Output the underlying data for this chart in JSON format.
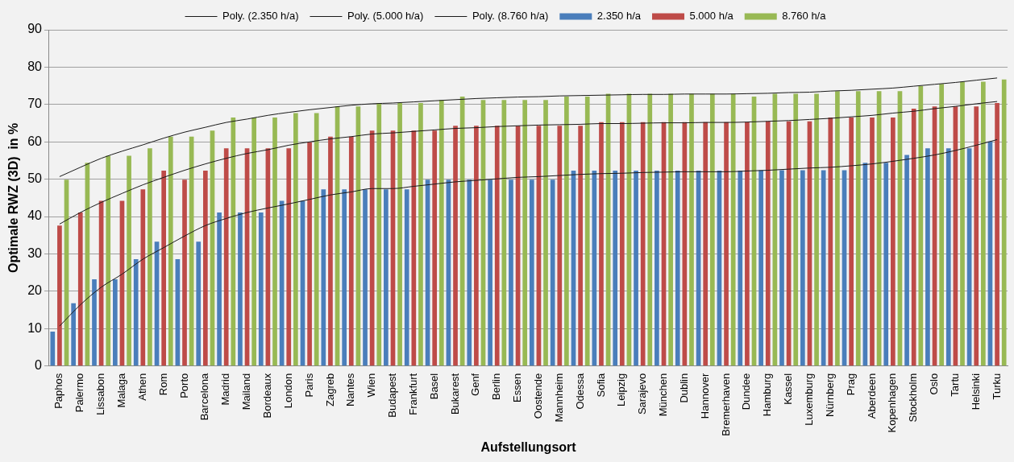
{
  "chart_data": {
    "type": "bar",
    "xlabel": "Aufstellungsort",
    "ylabel": "Optimale RWZ (3D)  in %",
    "categories": [
      "Paphos",
      "Palermo",
      "Lissabon",
      "Malaga",
      "Athen",
      "Rom",
      "Porto",
      "Barcelona",
      "Madrid",
      "Mailand",
      "Bordeaux",
      "London",
      "Paris",
      "Zagreb",
      "Nantes",
      "Wien",
      "Budapest",
      "Frankfurt",
      "Basel",
      "Bukarest",
      "Genf",
      "Berlin",
      "Essen",
      "Oostende",
      "Mannheim",
      "Odessa",
      "Sofia",
      "Leipzig",
      "Sarajevo",
      "München",
      "Dublin",
      "Hannover",
      "Bremerhaven",
      "Dundee",
      "Hamburg",
      "Kassel",
      "Luxemburg",
      "Nürnberg",
      "Prag",
      "Aberdeen",
      "Kopenhagen",
      "Stockholm",
      "Oslo",
      "Tartu",
      "Helsinki",
      "Turku"
    ],
    "series": [
      {
        "name": "2.350 h/a",
        "color": "#4a7ebb",
        "values": [
          9.2,
          16.8,
          23.2,
          23.2,
          28.6,
          33.3,
          28.6,
          33.3,
          41.1,
          41.1,
          41.1,
          44.2,
          44.2,
          47.3,
          47.3,
          47.3,
          47.3,
          47.3,
          49.9,
          49.9,
          49.9,
          49.9,
          49.9,
          49.9,
          49.9,
          52.3,
          52.3,
          52.3,
          52.3,
          52.3,
          52.3,
          52.3,
          52.3,
          52.3,
          52.4,
          52.4,
          52.4,
          52.4,
          52.4,
          54.4,
          54.4,
          56.5,
          58.3,
          58.3,
          58.3,
          60.1
        ]
      },
      {
        "name": "5.000 h/a",
        "color": "#be4b48",
        "values": [
          37.6,
          41.1,
          44.2,
          44.2,
          47.3,
          52.3,
          49.9,
          52.3,
          58.3,
          58.3,
          58.3,
          58.3,
          59.9,
          61.4,
          61.4,
          63.0,
          63.0,
          63.0,
          63.0,
          64.3,
          64.3,
          64.3,
          64.3,
          64.3,
          64.3,
          64.3,
          65.3,
          65.3,
          65.3,
          65.3,
          65.3,
          65.3,
          65.3,
          65.3,
          65.5,
          65.5,
          65.5,
          66.5,
          66.5,
          66.5,
          66.5,
          68.9,
          69.5,
          69.5,
          69.5,
          70.4
        ]
      },
      {
        "name": "8.760 h/a",
        "color": "#98b954",
        "values": [
          49.9,
          54.4,
          56.3,
          56.3,
          58.3,
          61.4,
          61.4,
          63.0,
          66.5,
          66.5,
          66.5,
          67.7,
          67.7,
          69.5,
          69.5,
          70.4,
          70.4,
          70.4,
          71.2,
          72.1,
          71.2,
          71.2,
          71.2,
          71.2,
          72.1,
          72.1,
          72.9,
          72.9,
          72.9,
          72.9,
          72.9,
          72.9,
          72.9,
          72.1,
          72.9,
          72.9,
          72.9,
          73.6,
          73.6,
          73.6,
          73.6,
          74.9,
          75.5,
          76.1,
          76.1,
          76.7
        ]
      },
      {
        "name": "Poly. (2.350 h/a)",
        "type": "line",
        "color": "#1a1a1a",
        "marker": "none",
        "values": [
          10.7,
          16.4,
          21.1,
          24.6,
          28.6,
          31.7,
          34.8,
          37.6,
          39.5,
          41.1,
          42.3,
          43.4,
          44.6,
          45.8,
          46.6,
          47.5,
          47.5,
          48.1,
          48.7,
          49.3,
          49.7,
          50.1,
          50.5,
          50.7,
          51.0,
          51.3,
          51.5,
          51.6,
          51.8,
          51.9,
          52.0,
          52.0,
          52.0,
          52.2,
          52.4,
          52.7,
          53.0,
          53.2,
          53.6,
          54.1,
          54.8,
          55.6,
          56.5,
          57.7,
          59.1,
          60.6
        ]
      },
      {
        "name": "Poly. (5.000 h/a)",
        "type": "line",
        "color": "#1a1a1a",
        "marker": "none",
        "values": [
          38.0,
          41.1,
          43.8,
          46.2,
          48.5,
          50.5,
          52.4,
          54.1,
          55.6,
          56.9,
          57.9,
          59.1,
          60.0,
          60.8,
          61.4,
          62.1,
          62.4,
          62.8,
          63.2,
          63.6,
          63.8,
          64.1,
          64.3,
          64.5,
          64.6,
          64.7,
          64.9,
          64.9,
          65.0,
          65.1,
          65.1,
          65.2,
          65.2,
          65.3,
          65.5,
          65.7,
          66.0,
          66.3,
          66.7,
          67.1,
          67.7,
          68.2,
          68.9,
          69.5,
          70.2,
          70.8
        ]
      },
      {
        "name": "Poly. (8.760 h/a)",
        "type": "line",
        "color": "#1a1a1a",
        "marker": "none",
        "values": [
          50.7,
          53.2,
          55.6,
          57.5,
          59.2,
          61.0,
          62.6,
          63.9,
          65.2,
          66.1,
          67.1,
          67.9,
          68.6,
          69.2,
          69.8,
          70.2,
          70.4,
          70.7,
          71.0,
          71.3,
          71.6,
          71.8,
          72.0,
          72.1,
          72.3,
          72.4,
          72.5,
          72.6,
          72.7,
          72.7,
          72.8,
          72.8,
          72.8,
          72.9,
          73.0,
          73.2,
          73.3,
          73.6,
          73.8,
          74.1,
          74.4,
          74.9,
          75.4,
          75.9,
          76.5,
          77.1
        ]
      }
    ],
    "ylim": [
      0,
      90
    ],
    "yticks": [
      0,
      10,
      20,
      30,
      40,
      50,
      60,
      70,
      80,
      90
    ],
    "grid": "y",
    "legend": "top"
  }
}
